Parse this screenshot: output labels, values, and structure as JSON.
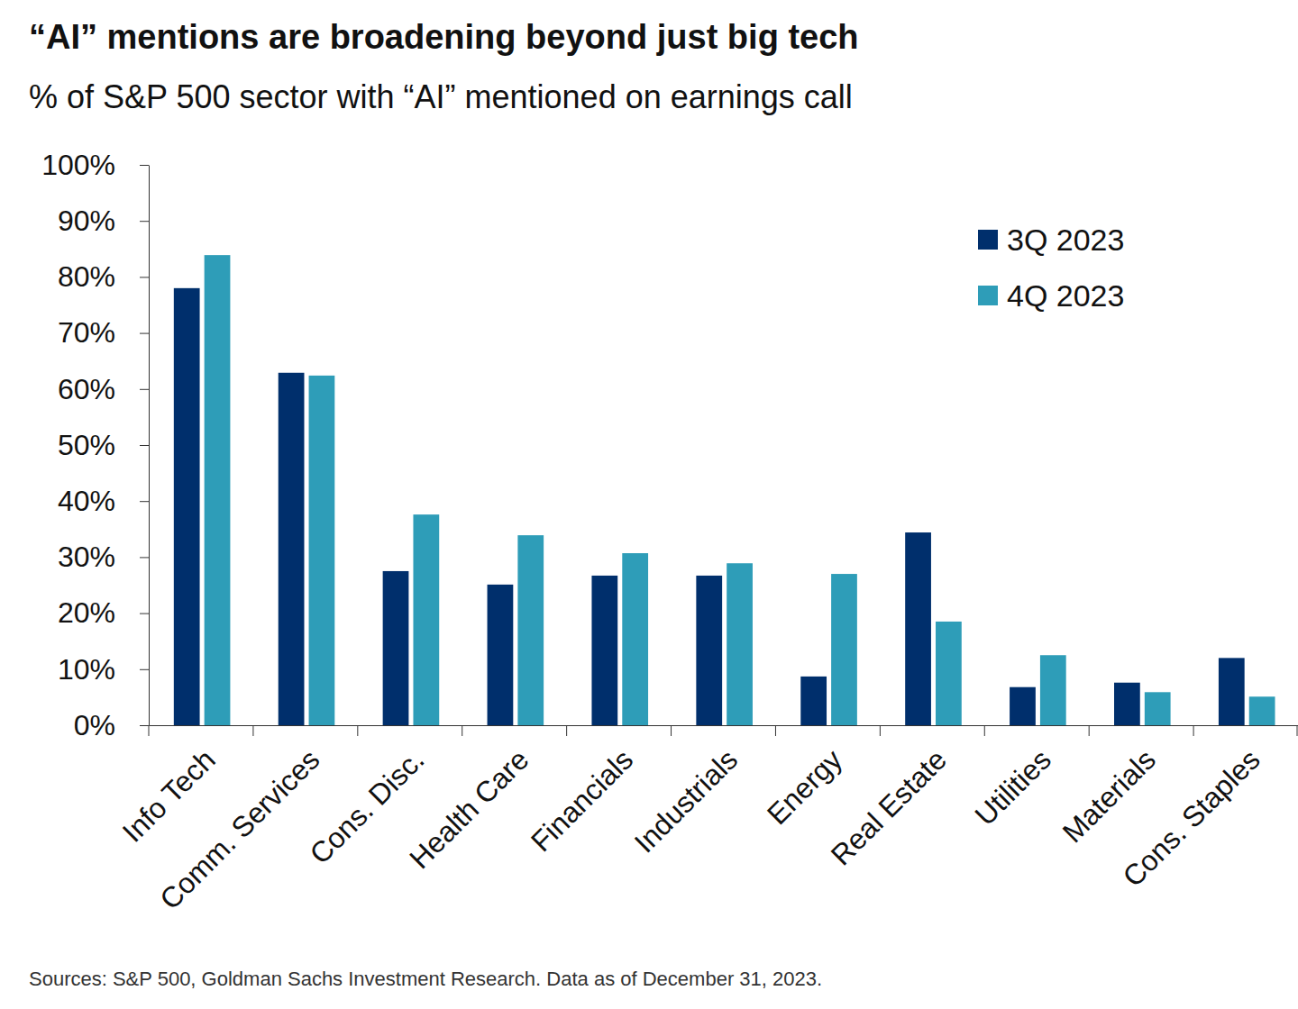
{
  "chart_data": {
    "type": "bar",
    "title": "“AI” mentions are broadening beyond just big tech",
    "subtitle": "% of S&P 500 sector with “AI” mentioned on earnings call",
    "source": "Sources: S&P 500, Goldman Sachs Investment Research. Data as of December 31, 2023.",
    "categories": [
      "Info Tech",
      "Comm. Services",
      "Cons. Disc.",
      "Health Care",
      "Financials",
      "Industrials",
      "Energy",
      "Real Estate",
      "Utilities",
      "Materials",
      "Cons. Staples"
    ],
    "series": [
      {
        "name": "3Q 2023",
        "color": "#002f6c",
        "values": [
          78,
          62.9,
          27.5,
          25.1,
          26.7,
          26.7,
          8.7,
          34.4,
          6.8,
          7.6,
          12
        ]
      },
      {
        "name": "4Q 2023",
        "color": "#2e9db8",
        "values": [
          83.9,
          62.4,
          37.6,
          33.9,
          30.7,
          28.9,
          27,
          18.5,
          12.5,
          5.9,
          5.1
        ]
      }
    ],
    "ylim": [
      0,
      100
    ],
    "yticks": [
      {
        "value": 0,
        "label": "0%"
      },
      {
        "value": 10,
        "label": "10%"
      },
      {
        "value": 20,
        "label": "20%"
      },
      {
        "value": 30,
        "label": "30%"
      },
      {
        "value": 40,
        "label": "40%"
      },
      {
        "value": 50,
        "label": "50%"
      },
      {
        "value": 60,
        "label": "60%"
      },
      {
        "value": 70,
        "label": "70%"
      },
      {
        "value": 80,
        "label": "80%"
      },
      {
        "value": 90,
        "label": "90%"
      },
      {
        "value": 100,
        "label": "100%"
      }
    ],
    "grid": false,
    "legend": "top-right"
  }
}
